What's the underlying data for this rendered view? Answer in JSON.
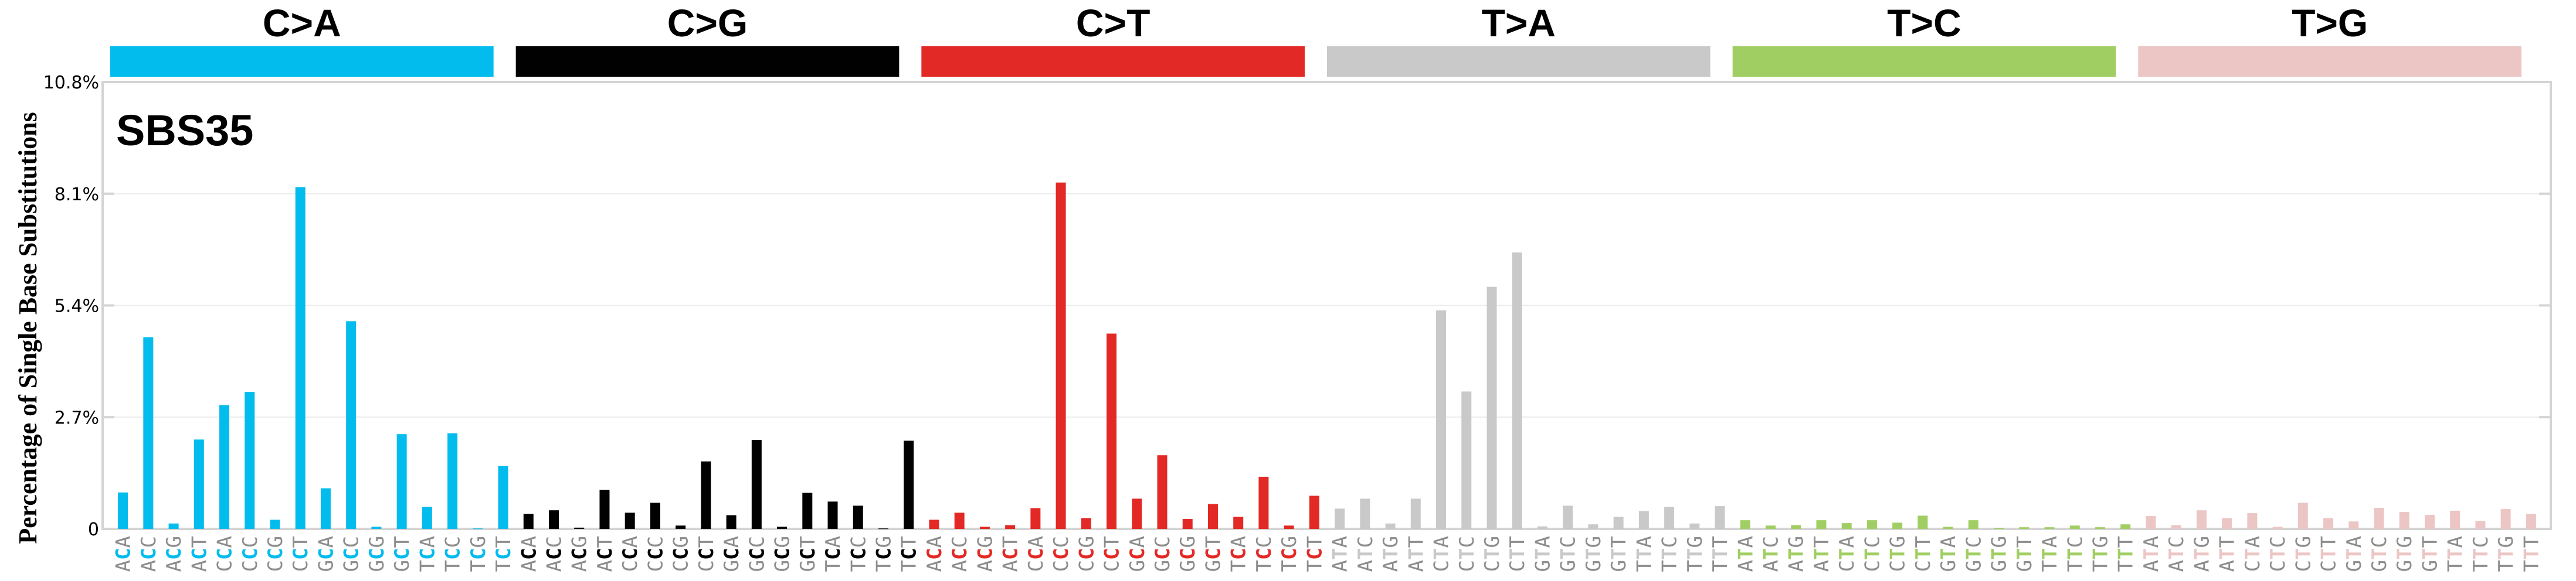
{
  "chart_data": {
    "type": "bar",
    "title": "SBS35",
    "xlabel": "",
    "ylabel": "Percentage of Single Base Substitutions",
    "ylim": [
      0,
      10.8
    ],
    "yticks": [
      "0",
      "2.7%",
      "5.4%",
      "8.1%",
      "10.8%"
    ],
    "ytick_values": [
      0,
      2.7,
      5.4,
      8.1,
      10.8
    ],
    "grid": true,
    "legend_position": "top (category bars)",
    "categories_groups": [
      {
        "name": "C>A",
        "color": "#03bcee",
        "mid": "C"
      },
      {
        "name": "C>G",
        "color": "#010101",
        "mid": "C"
      },
      {
        "name": "C>T",
        "color": "#e32926",
        "mid": "C"
      },
      {
        "name": "T>A",
        "color": "#cac9c9",
        "mid": "T"
      },
      {
        "name": "T>C",
        "color": "#a1ce63",
        "mid": "T"
      },
      {
        "name": "T>G",
        "color": "#ebc6c4",
        "mid": "T"
      }
    ],
    "contexts": [
      "A_A",
      "A_C",
      "A_G",
      "A_T",
      "C_A",
      "C_C",
      "C_G",
      "C_T",
      "G_A",
      "G_C",
      "G_G",
      "G_T",
      "T_A",
      "T_C",
      "T_G",
      "T_T"
    ],
    "series": [
      {
        "name": "C>A",
        "values": [
          0.88,
          4.63,
          0.13,
          2.16,
          2.99,
          3.31,
          0.22,
          8.26,
          0.98,
          5.02,
          0.05,
          2.29,
          0.53,
          2.31,
          0.01,
          1.52
        ]
      },
      {
        "name": "C>G",
        "values": [
          0.36,
          0.45,
          0.03,
          0.94,
          0.39,
          0.63,
          0.08,
          1.63,
          0.33,
          2.15,
          0.05,
          0.87,
          0.66,
          0.56,
          0.01,
          2.13
        ]
      },
      {
        "name": "C>T",
        "values": [
          0.22,
          0.39,
          0.05,
          0.09,
          0.5,
          8.37,
          0.26,
          4.72,
          0.73,
          1.78,
          0.24,
          0.6,
          0.29,
          1.26,
          0.08,
          0.8
        ]
      },
      {
        "name": "T>A",
        "values": [
          0.49,
          0.73,
          0.13,
          0.73,
          5.28,
          3.32,
          5.85,
          6.68,
          0.06,
          0.56,
          0.11,
          0.29,
          0.43,
          0.53,
          0.13,
          0.55
        ]
      },
      {
        "name": "T>C",
        "values": [
          0.21,
          0.08,
          0.09,
          0.21,
          0.14,
          0.21,
          0.15,
          0.32,
          0.05,
          0.21,
          0.02,
          0.04,
          0.04,
          0.08,
          0.04,
          0.11
        ]
      },
      {
        "name": "T>G",
        "values": [
          0.31,
          0.09,
          0.45,
          0.26,
          0.38,
          0.05,
          0.63,
          0.26,
          0.18,
          0.51,
          0.41,
          0.34,
          0.44,
          0.19,
          0.48,
          0.36
        ]
      }
    ]
  },
  "colors": {
    "frame": "#d4d4d4",
    "grid": "#ececec",
    "context_text": "#8c8c8c"
  }
}
